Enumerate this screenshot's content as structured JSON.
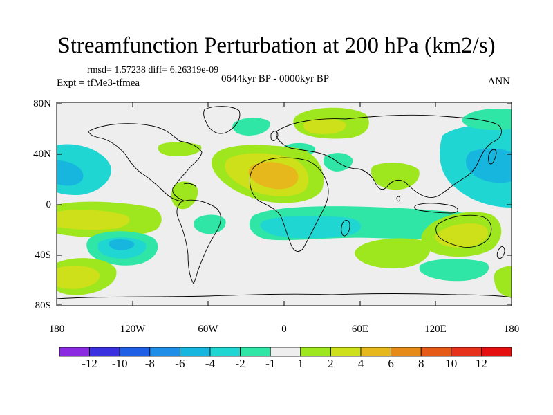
{
  "title": "Streamfunction Perturbation at 200 hPa (km2/s)",
  "rmsd_text": "rmsd= 1.57238 diff= 6.26319e-09",
  "expt_text": "Expt = tfMe3-tfmea",
  "period_text": "0644kyr BP - 0000kyr BP",
  "season_text": "ANN",
  "lat_labels": [
    "80N",
    "40N",
    "0",
    "40S",
    "80S"
  ],
  "lon_labels": [
    "180",
    "120W",
    "60W",
    "0",
    "60E",
    "120E",
    "180"
  ],
  "colorbar": {
    "labels": [
      "-12",
      "-10",
      "-8",
      "-6",
      "-4",
      "-2",
      "-1",
      "1",
      "2",
      "4",
      "6",
      "8",
      "10",
      "12"
    ],
    "colors": [
      "#8a2be2",
      "#3b30e0",
      "#1e5fe6",
      "#1f8ee6",
      "#17b6de",
      "#20d6d2",
      "#30e6a6",
      "#eeeeee",
      "#9ee61e",
      "#cde019",
      "#e6b81c",
      "#e68a1a",
      "#e65a18",
      "#e6321a",
      "#e60f0f"
    ]
  },
  "field_levels": {
    "cyan_neg": "#20d6d2",
    "green_neg": "#30e6a6",
    "lime_pos": "#9ee61e",
    "yellow_pos": "#cde019",
    "orange_pos": "#e6b81c",
    "blue_neg": "#17b6de",
    "deep_blue_neg": "#1f8ee6"
  }
}
